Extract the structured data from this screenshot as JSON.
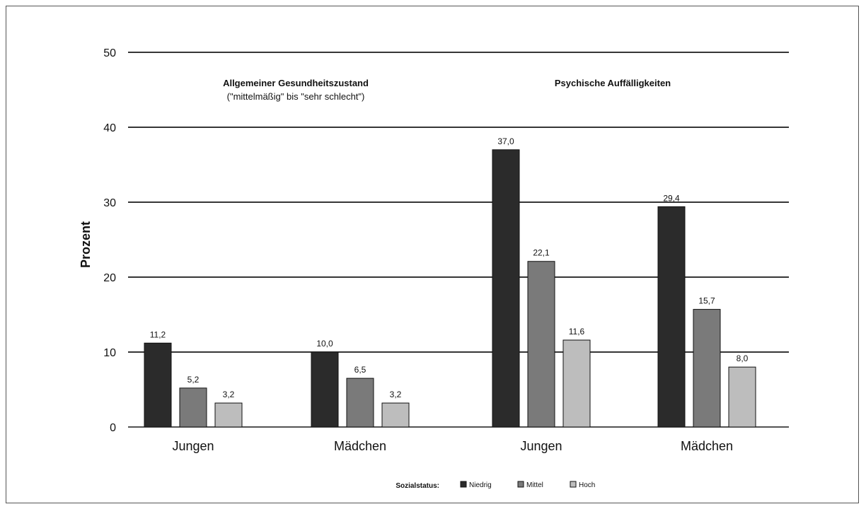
{
  "chart_data": {
    "type": "bar",
    "ylabel": "Prozent",
    "ylim": [
      0,
      50
    ],
    "yticks": [
      "0",
      "10",
      "20",
      "30",
      "40",
      "50"
    ],
    "ytick_values": [
      0,
      10,
      20,
      30,
      40,
      50
    ],
    "grid": true,
    "legend_position": "bottom",
    "legend_title": "Sozialstatus:",
    "groups": [
      {
        "title": "Allgemeiner Gesundheitszustand",
        "subtitle": "(\"mittelmäßig\" bis \"sehr schlecht\")"
      },
      {
        "title": "Psychische Auffälligkeiten",
        "subtitle": ""
      }
    ],
    "categories": [
      "Jungen",
      "Mädchen",
      "Jungen",
      "Mädchen"
    ],
    "series": [
      {
        "name": "Niedrig",
        "color": "#2b2b2b",
        "values": [
          11.2,
          10.0,
          37.0,
          29.4
        ],
        "labels": [
          "11,2",
          "10,0",
          "37,0",
          "29,4"
        ]
      },
      {
        "name": "Mittel",
        "color": "#7a7a7a",
        "values": [
          5.2,
          6.5,
          22.1,
          15.7
        ],
        "labels": [
          "5,2",
          "6,5",
          "22,1",
          "15,7"
        ]
      },
      {
        "name": "Hoch",
        "color": "#bdbdbd",
        "values": [
          3.2,
          3.2,
          11.6,
          8.0
        ],
        "labels": [
          "3,2",
          "3,2",
          "11,6",
          "8,0"
        ]
      }
    ]
  }
}
